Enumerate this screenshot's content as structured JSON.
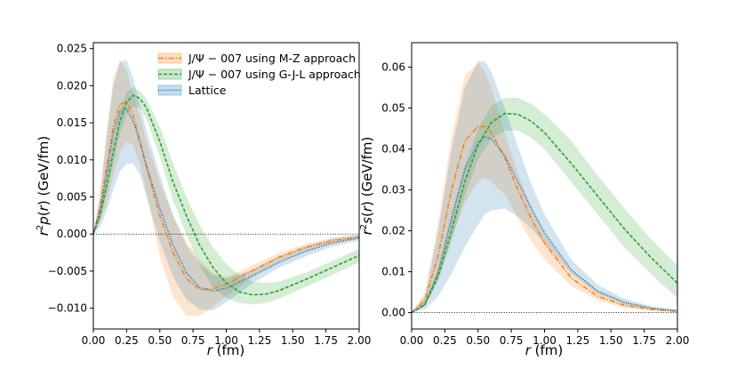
{
  "chart_data": [
    {
      "type": "line",
      "panel": "left",
      "xlabel": "r (fm)",
      "ylabel": "r^2 p(r) (GeV/fm)",
      "xlim": [
        0.0,
        2.0
      ],
      "ylim": [
        -0.0128,
        0.0258
      ],
      "xticks": [
        "0.00",
        "0.25",
        "0.50",
        "0.75",
        "1.00",
        "1.25",
        "1.50",
        "1.75",
        "2.00"
      ],
      "yticks": [
        "0.025",
        "0.020",
        "0.015",
        "0.010",
        "0.005",
        "0.000",
        "−0.005",
        "−0.010"
      ],
      "ytick_values": [
        0.025,
        0.02,
        0.015,
        0.01,
        0.005,
        0.0,
        -0.005,
        -0.01
      ],
      "legend": [
        "J/Ψ − 007 using M-Z approach",
        "J/Ψ − 007 using G-J-L approach",
        "Lattice"
      ],
      "series": [
        {
          "name": "J/Ψ − 007 using M-Z approach",
          "color": "#ff7f0e",
          "style": "dashdot",
          "x": [
            0.0,
            0.05,
            0.1,
            0.15,
            0.2,
            0.25,
            0.3,
            0.35,
            0.4,
            0.5,
            0.6,
            0.7,
            0.8,
            0.9,
            1.0,
            1.2,
            1.4,
            1.6,
            1.8,
            2.0
          ],
          "y": [
            0.0,
            0.0035,
            0.009,
            0.0145,
            0.0175,
            0.0178,
            0.016,
            0.0125,
            0.009,
            0.0025,
            -0.0025,
            -0.006,
            -0.0075,
            -0.0074,
            -0.0068,
            -0.0049,
            -0.0031,
            -0.0018,
            -0.0009,
            -0.0004
          ],
          "band_upper": [
            0.0,
            0.0055,
            0.014,
            0.021,
            0.0235,
            0.022,
            0.019,
            0.016,
            0.0125,
            0.007,
            0.0025,
            -0.001,
            -0.0035,
            -0.0052,
            -0.0058,
            -0.0042,
            -0.0025,
            -0.0013,
            -0.0005,
            -0.0001
          ],
          "band_lower": [
            0.0,
            0.0015,
            0.004,
            0.008,
            0.011,
            0.0125,
            0.012,
            0.0095,
            0.0055,
            -0.003,
            -0.0085,
            -0.011,
            -0.011,
            -0.0098,
            -0.0084,
            -0.0058,
            -0.0037,
            -0.0023,
            -0.0013,
            -0.0007
          ]
        },
        {
          "name": "J/Ψ − 007 using G-J-L approach",
          "color": "#2ca02c",
          "style": "dashed",
          "x": [
            0.0,
            0.05,
            0.1,
            0.15,
            0.2,
            0.25,
            0.3,
            0.35,
            0.4,
            0.5,
            0.6,
            0.7,
            0.8,
            0.9,
            1.0,
            1.1,
            1.2,
            1.3,
            1.4,
            1.6,
            1.8,
            2.0
          ],
          "y": [
            0.0,
            0.0025,
            0.0065,
            0.011,
            0.0152,
            0.0178,
            0.0187,
            0.0183,
            0.017,
            0.0125,
            0.007,
            0.0025,
            -0.0015,
            -0.0045,
            -0.0066,
            -0.0078,
            -0.0082,
            -0.0081,
            -0.0076,
            -0.0061,
            -0.0045,
            -0.0029
          ],
          "band_upper": [
            0.0,
            0.003,
            0.0075,
            0.0125,
            0.0168,
            0.0192,
            0.0198,
            0.0193,
            0.0182,
            0.0145,
            0.0095,
            0.005,
            0.0012,
            -0.0018,
            -0.004,
            -0.0055,
            -0.0064,
            -0.0066,
            -0.0064,
            -0.0052,
            -0.0036,
            -0.002
          ],
          "band_lower": [
            0.0,
            0.002,
            0.0055,
            0.0095,
            0.0135,
            0.016,
            0.0172,
            0.017,
            0.0155,
            0.0105,
            0.0045,
            0.0,
            -0.0042,
            -0.0072,
            -0.0086,
            -0.0093,
            -0.0095,
            -0.0093,
            -0.0087,
            -0.0071,
            -0.0055,
            -0.0038
          ]
        },
        {
          "name": "Lattice",
          "color": "#1f77b4",
          "style": "dotted",
          "x": [
            0.0,
            0.05,
            0.1,
            0.15,
            0.2,
            0.25,
            0.3,
            0.35,
            0.4,
            0.5,
            0.6,
            0.7,
            0.8,
            0.9,
            1.0,
            1.2,
            1.4,
            1.6,
            1.8,
            2.0
          ],
          "y": [
            0.0,
            0.003,
            0.008,
            0.0135,
            0.0165,
            0.0168,
            0.0152,
            0.0125,
            0.0092,
            0.0035,
            -0.0015,
            -0.0052,
            -0.0072,
            -0.0077,
            -0.0073,
            -0.0056,
            -0.0038,
            -0.0023,
            -0.0012,
            -0.0005
          ],
          "band_upper": [
            0.0,
            0.005,
            0.013,
            0.02,
            0.0232,
            0.0235,
            0.021,
            0.0175,
            0.014,
            0.008,
            0.0025,
            -0.0015,
            -0.004,
            -0.0055,
            -0.006,
            -0.0048,
            -0.003,
            -0.0016,
            -0.0006,
            -0.0001
          ],
          "band_lower": [
            0.0,
            0.001,
            0.003,
            0.006,
            0.0085,
            0.0095,
            0.0095,
            0.008,
            0.005,
            -0.001,
            -0.0058,
            -0.0088,
            -0.0102,
            -0.0103,
            -0.0092,
            -0.0066,
            -0.0045,
            -0.003,
            -0.0017,
            -0.0009
          ]
        }
      ]
    },
    {
      "type": "line",
      "panel": "right",
      "xlabel": "r (fm)",
      "ylabel": "r^2 s(r) (GeV/fm)",
      "xlim": [
        0.0,
        2.0
      ],
      "ylim": [
        -0.004,
        0.066
      ],
      "xticks": [
        "0.00",
        "0.25",
        "0.50",
        "0.75",
        "1.00",
        "1.25",
        "1.50",
        "1.75",
        "2.00"
      ],
      "yticks": [
        "0.06",
        "0.05",
        "0.04",
        "0.03",
        "0.02",
        "0.01",
        "0.00"
      ],
      "ytick_values": [
        0.06,
        0.05,
        0.04,
        0.03,
        0.02,
        0.01,
        0.0
      ],
      "series": [
        {
          "name": "J/Ψ − 007 using M-Z approach",
          "color": "#ff7f0e",
          "style": "dashdot",
          "x": [
            0.0,
            0.1,
            0.2,
            0.3,
            0.4,
            0.5,
            0.55,
            0.6,
            0.7,
            0.8,
            0.9,
            1.0,
            1.2,
            1.4,
            1.6,
            1.8,
            2.0
          ],
          "y": [
            0.0,
            0.003,
            0.014,
            0.03,
            0.042,
            0.0455,
            0.0455,
            0.044,
            0.038,
            0.03,
            0.023,
            0.017,
            0.0085,
            0.004,
            0.0018,
            0.0008,
            0.0003
          ],
          "band_upper": [
            0.0,
            0.005,
            0.022,
            0.043,
            0.058,
            0.061,
            0.059,
            0.055,
            0.044,
            0.034,
            0.026,
            0.0195,
            0.0105,
            0.0055,
            0.0028,
            0.0013,
            0.0006
          ],
          "band_lower": [
            0.0,
            0.0015,
            0.008,
            0.018,
            0.027,
            0.032,
            0.033,
            0.032,
            0.029,
            0.023,
            0.0175,
            0.013,
            0.0065,
            0.003,
            0.0012,
            0.0005,
            0.0001
          ]
        },
        {
          "name": "J/Ψ − 007 using G-J-L approach",
          "color": "#2ca02c",
          "style": "dashed",
          "x": [
            0.0,
            0.1,
            0.2,
            0.3,
            0.4,
            0.5,
            0.6,
            0.7,
            0.8,
            0.9,
            1.0,
            1.2,
            1.4,
            1.6,
            1.8,
            2.0
          ],
          "y": [
            0.0,
            0.002,
            0.009,
            0.02,
            0.032,
            0.041,
            0.0465,
            0.0487,
            0.0485,
            0.0468,
            0.044,
            0.0365,
            0.0285,
            0.0205,
            0.0135,
            0.0072
          ],
          "band_upper": [
            0.0,
            0.0023,
            0.0105,
            0.0235,
            0.036,
            0.045,
            0.0505,
            0.0525,
            0.0525,
            0.051,
            0.0485,
            0.042,
            0.0335,
            0.0255,
            0.018,
            0.0115
          ],
          "band_lower": [
            0.0,
            0.0017,
            0.0078,
            0.0175,
            0.0285,
            0.0375,
            0.0425,
            0.0445,
            0.0445,
            0.0428,
            0.04,
            0.032,
            0.024,
            0.016,
            0.0095,
            0.0035
          ]
        },
        {
          "name": "Lattice",
          "color": "#1f77b4",
          "style": "dotted",
          "x": [
            0.0,
            0.1,
            0.2,
            0.3,
            0.4,
            0.5,
            0.55,
            0.6,
            0.7,
            0.8,
            0.9,
            1.0,
            1.2,
            1.4,
            1.6,
            1.8,
            2.0
          ],
          "y": [
            0.0,
            0.002,
            0.01,
            0.023,
            0.035,
            0.0415,
            0.043,
            0.0425,
            0.0385,
            0.032,
            0.0255,
            0.0195,
            0.0105,
            0.0052,
            0.0025,
            0.0011,
            0.0004
          ],
          "band_upper": [
            0.0,
            0.004,
            0.02,
            0.04,
            0.055,
            0.0615,
            0.0615,
            0.059,
            0.05,
            0.0405,
            0.0315,
            0.024,
            0.013,
            0.0068,
            0.0034,
            0.0016,
            0.0007
          ],
          "band_lower": [
            0.0,
            0.0008,
            0.004,
            0.0095,
            0.016,
            0.0215,
            0.024,
            0.025,
            0.0255,
            0.0235,
            0.0205,
            0.017,
            0.0095,
            0.0045,
            0.002,
            0.0008,
            0.0003
          ]
        }
      ]
    }
  ]
}
